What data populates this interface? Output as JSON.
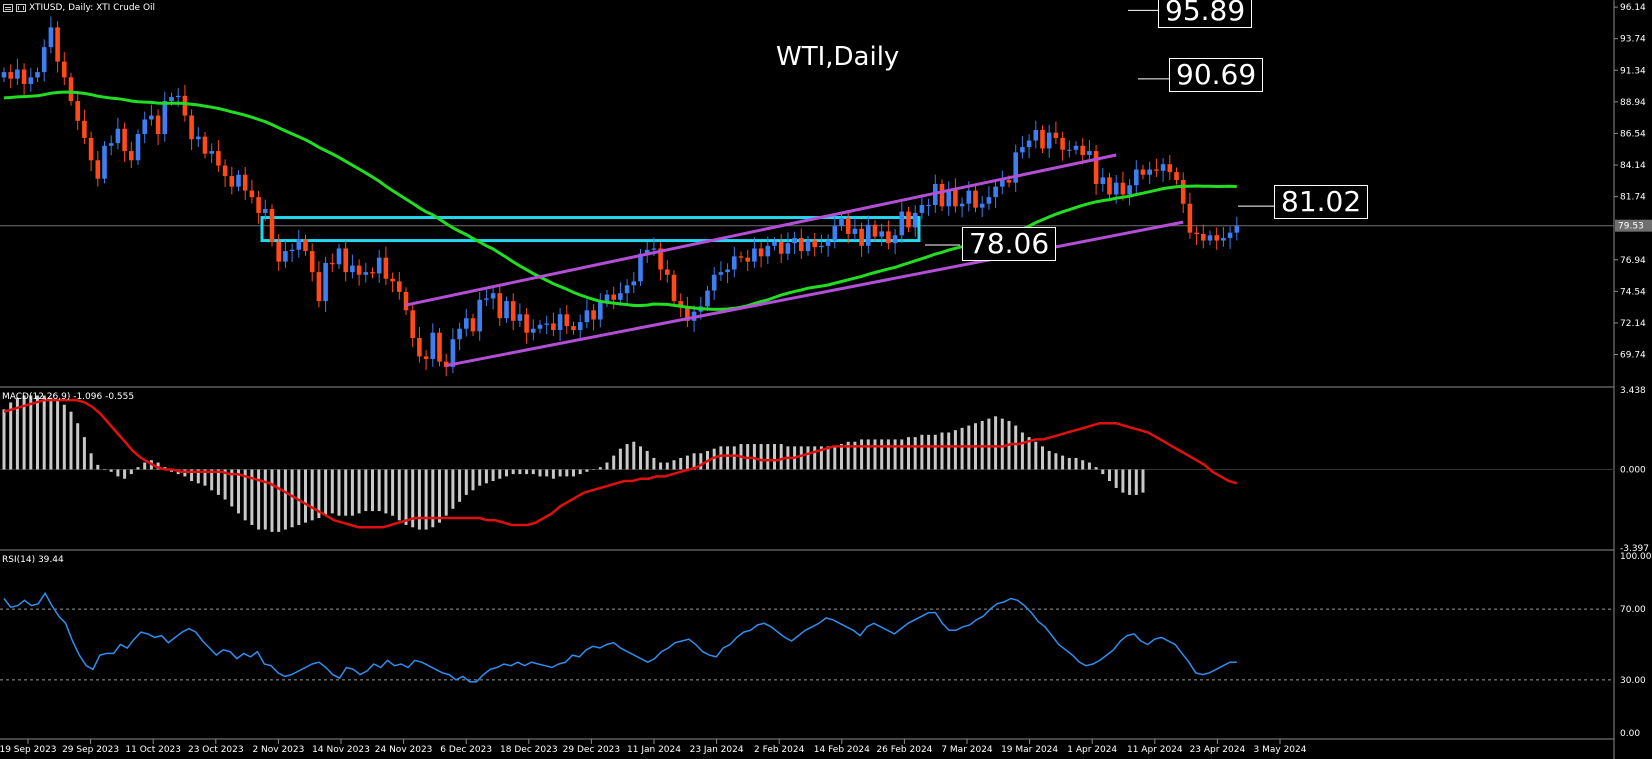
{
  "header": {
    "symbol_label": "XTIUSD, Daily:  XTI Crude Oil",
    "chart_title": "WTI,Daily"
  },
  "annotations": {
    "level_1": "95.89",
    "level_2": "90.69",
    "level_3": "81.02",
    "level_4": "78.06",
    "current_price": "79.53"
  },
  "macd_panel": {
    "label": "MACD(12,26,9) -1.096 -0.555"
  },
  "rsi_panel": {
    "label": "RSI(14) 39.44"
  },
  "colors": {
    "bull": "#3d7ef0",
    "bear": "#ff4a1a",
    "ma": "#22dd22",
    "channel": "#b24fd6",
    "zone": "#22d7ef",
    "macd_hist": "#c8c8c8",
    "macd_signal": "#e01010",
    "rsi": "#2f8ef0"
  },
  "chart_data": [
    {
      "type": "candlestick",
      "title": "WTI,Daily",
      "ylim": [
        67.5,
        96.3
      ],
      "y_ticks": [
        "96.14",
        "93.74",
        "91.34",
        "88.94",
        "86.54",
        "84.14",
        "81.74",
        "79.53",
        "76.94",
        "74.54",
        "72.14",
        "69.74"
      ],
      "x_ticks": [
        "19 Sep 2023",
        "29 Sep 2023",
        "11 Oct 2023",
        "23 Oct 2023",
        "2 Nov 2023",
        "14 Nov 2023",
        "24 Nov 2023",
        "6 Dec 2023",
        "18 Dec 2023",
        "29 Dec 2023",
        "11 Jan 2024",
        "23 Jan 2024",
        "2 Feb 2024",
        "14 Feb 2024",
        "26 Feb 2024",
        "7 Mar 2024",
        "19 Mar 2024",
        "1 Apr 2024",
        "11 Apr 2024",
        "23 Apr 2024",
        "3 May 2024"
      ],
      "close": [
        91.2,
        90.7,
        91.4,
        90.3,
        90.8,
        91.2,
        93.1,
        94.6,
        92.0,
        90.8,
        89.0,
        87.5,
        86.2,
        84.5,
        83.1,
        85.6,
        85.8,
        86.9,
        85.2,
        84.5,
        86.5,
        87.6,
        87.9,
        86.5,
        89.0,
        89.3,
        89.4,
        87.9,
        86.1,
        86.3,
        85.0,
        85.2,
        84.1,
        83.3,
        82.5,
        83.4,
        82.2,
        81.7,
        80.5,
        80.8,
        78.3,
        76.8,
        77.6,
        77.7,
        78.5,
        77.6,
        76.0,
        73.8,
        76.7,
        76.6,
        77.8,
        76.0,
        76.5,
        75.8,
        76.0,
        75.9,
        77.1,
        75.5,
        75.3,
        74.5,
        73.1,
        71.0,
        69.6,
        69.4,
        71.4,
        69.2,
        68.8,
        70.9,
        71.7,
        72.5,
        71.5,
        73.9,
        74.0,
        74.4,
        72.5,
        73.8,
        72.3,
        72.8,
        71.4,
        71.7,
        72.0,
        72.1,
        71.6,
        72.8,
        71.9,
        71.6,
        72.2,
        73.1,
        72.4,
        73.7,
        74.3,
        73.9,
        74.4,
        75.0,
        75.3,
        77.4,
        77.7,
        77.8,
        76.2,
        75.8,
        73.8,
        73.3,
        72.3,
        73.0,
        73.4,
        74.6,
        75.8,
        76.0,
        76.2,
        77.2,
        77.1,
        76.8,
        77.8,
        77.2,
        78.0,
        78.3,
        77.4,
        78.2,
        78.6,
        77.6,
        78.4,
        77.9,
        78.0,
        78.4,
        79.5,
        80.1,
        78.9,
        79.3,
        78.0,
        79.6,
        78.7,
        79.1,
        78.2,
        78.8,
        80.6,
        79.4,
        80.5,
        81.1,
        81.1,
        82.7,
        81.0,
        82.3,
        81.0,
        81.2,
        82.2,
        80.9,
        81.2,
        81.7,
        82.5,
        83.0,
        82.8,
        85.1,
        85.5,
        86.0,
        86.8,
        85.4,
        86.6,
        86.2,
        85.3,
        85.3,
        85.6,
        84.9,
        85.2,
        82.7,
        83.2,
        81.9,
        82.8,
        81.9,
        82.6,
        83.8,
        83.4,
        83.8,
        83.7,
        84.2,
        83.6,
        83.0,
        81.2,
        79.0,
        78.9,
        78.4,
        78.8,
        78.4,
        78.6,
        79.0,
        79.5
      ]
    },
    {
      "type": "line",
      "title": "MACD(12,26,9) -1.096 -0.555",
      "ylim": [
        -3.397,
        3.438
      ],
      "y_ticks": [
        "3.438",
        "0.000",
        "-3.397"
      ],
      "series": [
        {
          "name": "MACD",
          "style": "histogram",
          "values": [
            2.6,
            2.9,
            3.1,
            3.2,
            3.2,
            3.2,
            3.2,
            3.1,
            3.0,
            2.8,
            2.5,
            2.0,
            1.4,
            0.7,
            0.2,
            0.0,
            -0.1,
            -0.3,
            -0.4,
            -0.2,
            0.1,
            0.3,
            0.4,
            0.3,
            0.1,
            -0.1,
            -0.2,
            -0.3,
            -0.5,
            -0.6,
            -0.7,
            -0.9,
            -1.1,
            -1.3,
            -1.6,
            -1.9,
            -2.2,
            -2.4,
            -2.6,
            -2.6,
            -2.7,
            -2.7,
            -2.6,
            -2.5,
            -2.4,
            -2.3,
            -2.2,
            -2.1,
            -2.0,
            -1.9,
            -2.0,
            -2.0,
            -2.0,
            -1.9,
            -1.8,
            -1.8,
            -1.8,
            -1.9,
            -2.0,
            -2.2,
            -2.4,
            -2.5,
            -2.6,
            -2.6,
            -2.5,
            -2.3,
            -2.0,
            -1.7,
            -1.4,
            -1.1,
            -0.9,
            -0.7,
            -0.6,
            -0.5,
            -0.4,
            -0.3,
            -0.2,
            -0.2,
            -0.2,
            -0.2,
            -0.3,
            -0.3,
            -0.4,
            -0.3,
            -0.3,
            -0.3,
            -0.2,
            -0.1,
            0.0,
            0.1,
            0.3,
            0.6,
            0.9,
            1.1,
            1.2,
            1.0,
            0.8,
            0.5,
            0.3,
            0.3,
            0.4,
            0.5,
            0.6,
            0.7,
            0.7,
            0.8,
            0.9,
            1.0,
            1.0,
            1.0,
            1.1,
            1.1,
            1.1,
            1.1,
            1.1,
            1.1,
            1.1,
            1.0,
            1.0,
            1.0,
            1.0,
            1.0,
            1.0,
            1.0,
            1.0,
            1.1,
            1.2,
            1.2,
            1.3,
            1.3,
            1.3,
            1.3,
            1.3,
            1.3,
            1.3,
            1.4,
            1.4,
            1.5,
            1.5,
            1.5,
            1.6,
            1.6,
            1.7,
            1.8,
            1.9,
            2.0,
            2.1,
            2.2,
            2.3,
            2.2,
            2.1,
            1.9,
            1.6,
            1.4,
            1.2,
            1.0,
            0.8,
            0.7,
            0.6,
            0.5,
            0.5,
            0.4,
            0.3,
            0.1,
            -0.2,
            -0.5,
            -0.8,
            -1.0,
            -1.1,
            -1.1,
            -1.0
          ]
        },
        {
          "name": "Signal",
          "style": "line",
          "values": [
            2.5,
            2.6,
            2.7,
            2.8,
            2.9,
            3.0,
            3.0,
            3.0,
            3.0,
            3.0,
            2.9,
            2.7,
            2.4,
            2.0,
            1.6,
            1.2,
            0.8,
            0.5,
            0.3,
            0.1,
            0.0,
            0.0,
            -0.1,
            -0.1,
            -0.1,
            -0.1,
            -0.1,
            -0.1,
            -0.2,
            -0.2,
            -0.3,
            -0.4,
            -0.5,
            -0.6,
            -0.8,
            -1.0,
            -1.2,
            -1.4,
            -1.6,
            -1.8,
            -2.0,
            -2.2,
            -2.3,
            -2.4,
            -2.5,
            -2.5,
            -2.5,
            -2.5,
            -2.4,
            -2.3,
            -2.2,
            -2.1,
            -2.1,
            -2.1,
            -2.1,
            -2.1,
            -2.1,
            -2.1,
            -2.1,
            -2.1,
            -2.2,
            -2.2,
            -2.3,
            -2.4,
            -2.4,
            -2.4,
            -2.3,
            -2.1,
            -1.9,
            -1.6,
            -1.4,
            -1.2,
            -1.0,
            -0.9,
            -0.8,
            -0.7,
            -0.6,
            -0.5,
            -0.5,
            -0.4,
            -0.4,
            -0.3,
            -0.3,
            -0.2,
            -0.1,
            0.0,
            0.1,
            0.3,
            0.5,
            0.6,
            0.6,
            0.6,
            0.5,
            0.5,
            0.4,
            0.4,
            0.4,
            0.5,
            0.5,
            0.6,
            0.7,
            0.8,
            0.9,
            1.0,
            1.0,
            1.0,
            1.0,
            1.0,
            1.0,
            1.0,
            1.0,
            1.0,
            1.0,
            1.0,
            1.0,
            1.0,
            1.0,
            1.0,
            1.0,
            1.0,
            1.0,
            1.0,
            1.0,
            1.0,
            1.0,
            1.1,
            1.1,
            1.2,
            1.3,
            1.3,
            1.4,
            1.5,
            1.6,
            1.7,
            1.8,
            1.9,
            2.0,
            2.0,
            2.0,
            1.9,
            1.8,
            1.7,
            1.6,
            1.4,
            1.2,
            1.0,
            0.8,
            0.6,
            0.4,
            0.2,
            -0.1,
            -0.3,
            -0.5,
            -0.6
          ]
        }
      ]
    },
    {
      "type": "line",
      "title": "RSI(14) 39.44",
      "ylim": [
        0,
        100
      ],
      "y_ticks": [
        "100.00",
        "70.00",
        "30.00",
        "0.00"
      ],
      "series": [
        {
          "name": "RSI(14)",
          "values": [
            76,
            71,
            72,
            75,
            72,
            73,
            79,
            72,
            66,
            62,
            52,
            44,
            38,
            36,
            44,
            45,
            45,
            50,
            48,
            53,
            57,
            56,
            54,
            55,
            51,
            54,
            57,
            59,
            57,
            52,
            48,
            44,
            47,
            46,
            42,
            45,
            43,
            46,
            39,
            38,
            34,
            32,
            33,
            35,
            37,
            39,
            40,
            37,
            33,
            31,
            37,
            36,
            33,
            35,
            39,
            37,
            41,
            38,
            39,
            37,
            41,
            40,
            38,
            36,
            34,
            33,
            30,
            32,
            29,
            29,
            33,
            36,
            37,
            39,
            38,
            40,
            38,
            40,
            39,
            38,
            37,
            39,
            40,
            44,
            43,
            47,
            49,
            48,
            50,
            51,
            48,
            46,
            44,
            42,
            40,
            42,
            46,
            48,
            51,
            52,
            53,
            50,
            46,
            44,
            43,
            48,
            50,
            54,
            57,
            58,
            61,
            62,
            60,
            57,
            54,
            52,
            55,
            58,
            60,
            62,
            65,
            64,
            62,
            60,
            58,
            55,
            60,
            62,
            60,
            58,
            56,
            59,
            62,
            64,
            66,
            68,
            68,
            62,
            58,
            58,
            60,
            61,
            64,
            66,
            70,
            73,
            74,
            76,
            75,
            72,
            68,
            63,
            60,
            55,
            50,
            47,
            44,
            40,
            38,
            39,
            41,
            44,
            47,
            52,
            55,
            56,
            52,
            50,
            53,
            54,
            52,
            50,
            45,
            40,
            34,
            33,
            34,
            36,
            38,
            40,
            40
          ]
        }
      ]
    }
  ]
}
